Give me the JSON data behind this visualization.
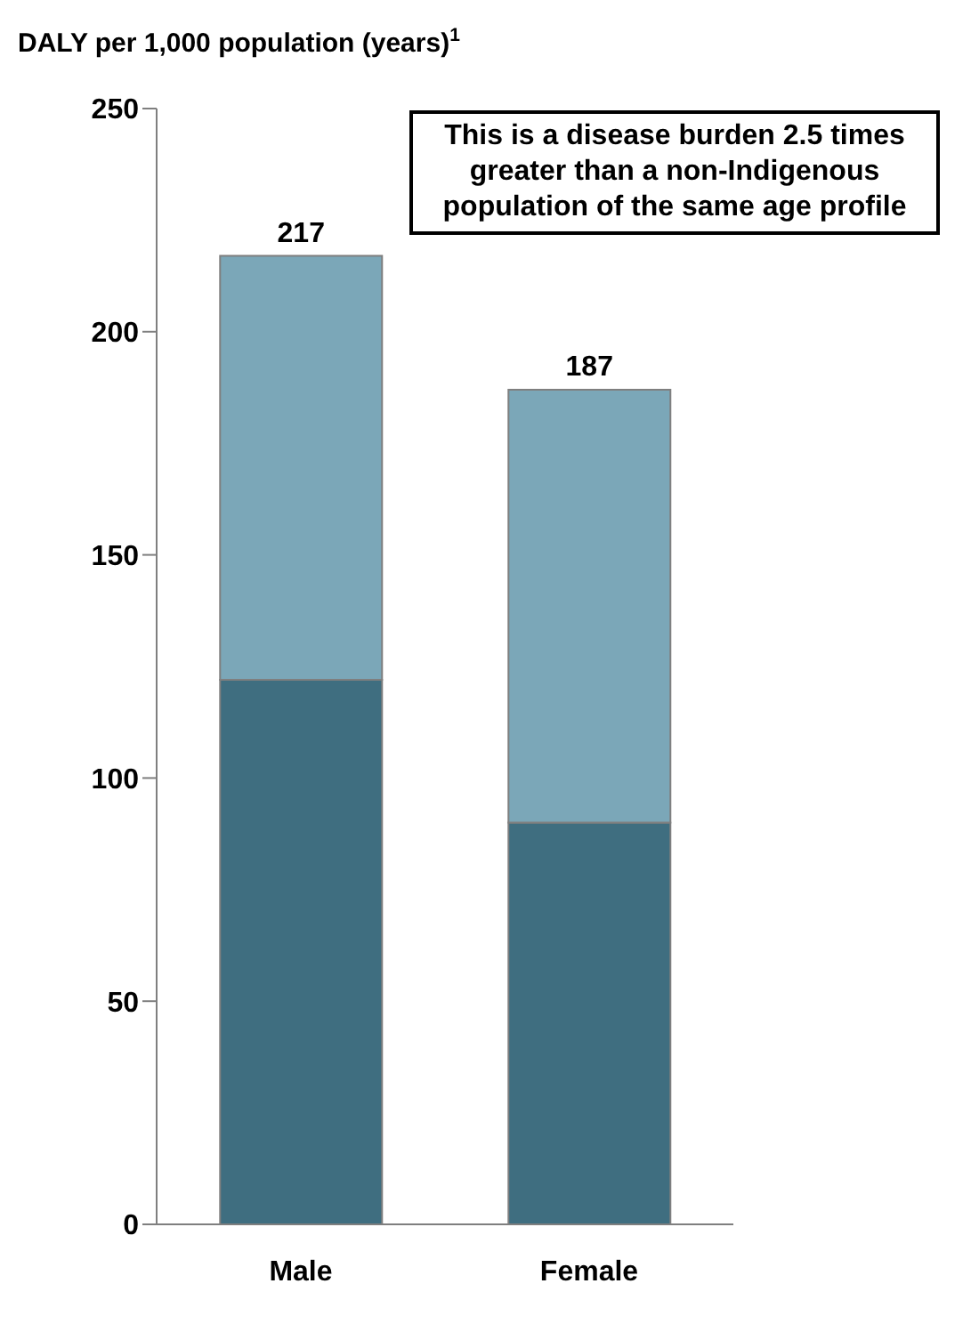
{
  "chart_data": {
    "type": "bar",
    "title": "DALY per 1,000 population (years)$^{1}$",
    "categories": [
      "Male",
      "Female"
    ],
    "stacked": true,
    "series": [
      {
        "color": "#3f6e80",
        "values": [
          122,
          90
        ]
      },
      {
        "color": "#7ba7b8",
        "values": [
          95,
          97
        ]
      }
    ],
    "totals": [
      "217",
      "187"
    ],
    "ylim": [
      0,
      250
    ],
    "yticks": [
      0,
      50,
      100,
      150,
      200,
      250
    ],
    "grid": false,
    "legend": false,
    "annotations": [
      "This is a disease burden 2.5 times greater than a non-Indigenous population of the same age profile"
    ]
  }
}
